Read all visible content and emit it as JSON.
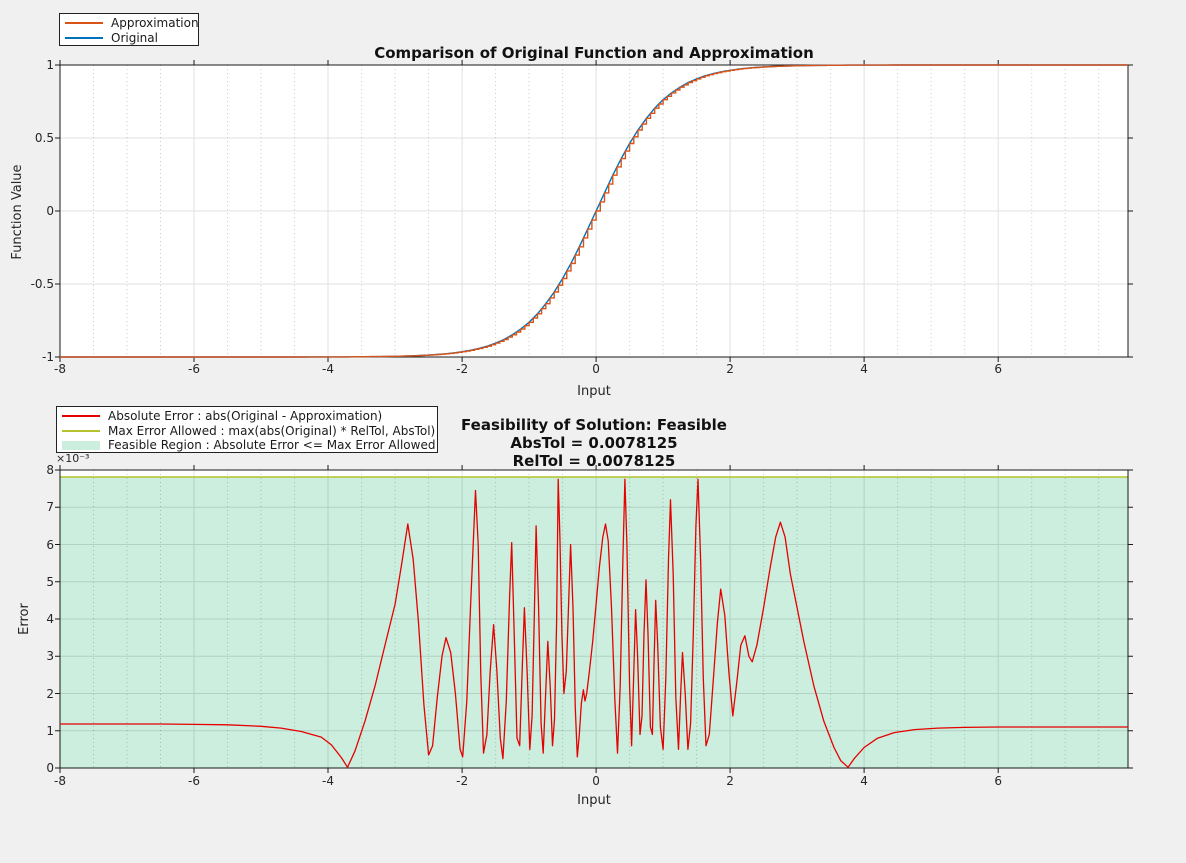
{
  "figure": {
    "background": "#f0f0f0",
    "axes_background": "#ffffff",
    "frame_color": "#1a1a1a",
    "text_color": "#262626"
  },
  "chart_data": [
    {
      "id": "comparison",
      "type": "line",
      "title": "Comparison of Original Function and Approximation",
      "xlabel": "Input",
      "ylabel": "Function Value",
      "xlim": [
        -8,
        7.9375
      ],
      "ylim": [
        -1,
        1
      ],
      "xticks": [
        -8,
        -6,
        -4,
        -2,
        0,
        2,
        4,
        6
      ],
      "xtick_labels": [
        "-8",
        "-6",
        "-4",
        "-2",
        "0",
        "2",
        "4",
        "6"
      ],
      "yticks": [
        -1,
        -0.5,
        0,
        0.5,
        1
      ],
      "ytick_labels": [
        "-1",
        "-0.5",
        "0",
        "0.5",
        "1"
      ],
      "minor_x_step": 0.5,
      "grid": true,
      "legend": {
        "position": "top-left-outside",
        "entries": [
          {
            "label": "Approximation",
            "color": "#d95319",
            "type": "line"
          },
          {
            "label": "Original",
            "color": "#0072bd",
            "type": "line"
          }
        ]
      },
      "x": [
        -8,
        -7,
        -6,
        -5,
        -4.5,
        -4,
        -3.75,
        -3.5,
        -3.25,
        -3,
        -2.875,
        -2.75,
        -2.625,
        -2.5,
        -2.375,
        -2.25,
        -2.125,
        -2,
        -1.875,
        -1.75,
        -1.625,
        -1.5,
        -1.375,
        -1.25,
        -1.125,
        -1,
        -0.875,
        -0.75,
        -0.625,
        -0.5,
        -0.375,
        -0.25,
        -0.125,
        0,
        0.125,
        0.25,
        0.375,
        0.5,
        0.625,
        0.75,
        0.875,
        1,
        1.125,
        1.25,
        1.375,
        1.5,
        1.625,
        1.75,
        1.875,
        2,
        2.125,
        2.25,
        2.375,
        2.5,
        2.625,
        2.75,
        2.875,
        3,
        3.25,
        3.5,
        3.75,
        4,
        4.5,
        5,
        6,
        7,
        7.9375
      ],
      "series": [
        {
          "name": "Approximation",
          "color": "#d95319",
          "style": "staircase",
          "quantize_x": 0.0625,
          "y": [
            -1,
            -1,
            -1,
            -1,
            -1,
            -0.999,
            -0.999,
            -0.998,
            -0.997,
            -0.995,
            -0.994,
            -0.992,
            -0.99,
            -0.987,
            -0.983,
            -0.978,
            -0.972,
            -0.964,
            -0.954,
            -0.941,
            -0.926,
            -0.905,
            -0.88,
            -0.848,
            -0.809,
            -0.762,
            -0.704,
            -0.635,
            -0.555,
            -0.462,
            -0.359,
            -0.245,
            -0.124,
            0,
            0.124,
            0.245,
            0.359,
            0.462,
            0.555,
            0.635,
            0.704,
            0.762,
            0.809,
            0.848,
            0.88,
            0.905,
            0.926,
            0.941,
            0.954,
            0.964,
            0.972,
            0.978,
            0.983,
            0.987,
            0.99,
            0.992,
            0.994,
            0.995,
            0.997,
            0.998,
            0.999,
            0.999,
            1,
            1,
            1,
            1,
            1
          ]
        },
        {
          "name": "Original",
          "color": "#0072bd",
          "style": "line",
          "y": [
            -1,
            -1,
            -1,
            -1,
            -1,
            -0.999,
            -0.999,
            -0.998,
            -0.997,
            -0.995,
            -0.994,
            -0.992,
            -0.99,
            -0.987,
            -0.983,
            -0.978,
            -0.972,
            -0.964,
            -0.954,
            -0.941,
            -0.926,
            -0.905,
            -0.88,
            -0.848,
            -0.809,
            -0.762,
            -0.704,
            -0.635,
            -0.555,
            -0.462,
            -0.359,
            -0.245,
            -0.124,
            0,
            0.124,
            0.245,
            0.359,
            0.462,
            0.555,
            0.635,
            0.704,
            0.762,
            0.809,
            0.848,
            0.88,
            0.905,
            0.926,
            0.941,
            0.954,
            0.964,
            0.972,
            0.978,
            0.983,
            0.987,
            0.99,
            0.992,
            0.994,
            0.995,
            0.997,
            0.998,
            0.999,
            0.999,
            1,
            1,
            1,
            1,
            1
          ]
        }
      ]
    },
    {
      "id": "feasibility",
      "type": "line",
      "title_lines": [
        "Feasibility of Solution: Feasible",
        "AbsTol = 0.0078125",
        "RelTol = 0.0078125"
      ],
      "xlabel": "Input",
      "ylabel": "Error",
      "y_multiplier": "×10⁻³",
      "y_scale": 0.001,
      "xlim": [
        -8,
        7.9375
      ],
      "ylim": [
        0,
        8
      ],
      "xticks": [
        -8,
        -6,
        -4,
        -2,
        0,
        2,
        4,
        6
      ],
      "xtick_labels": [
        "-8",
        "-6",
        "-4",
        "-2",
        "0",
        "2",
        "4",
        "6"
      ],
      "yticks": [
        0,
        1,
        2,
        3,
        4,
        5,
        6,
        7,
        8
      ],
      "ytick_labels": [
        "0",
        "1",
        "2",
        "3",
        "4",
        "5",
        "6",
        "7",
        "8"
      ],
      "minor_x_step": 0.5,
      "grid": true,
      "max_error_allowed": 7.8125,
      "max_error_color": "#b5c22b",
      "feasible_region_color": "#cbeede",
      "legend": {
        "position": "top-left-outside",
        "entries": [
          {
            "label": "Absolute Error : abs(Original - Approximation)",
            "color": "#e60000",
            "type": "line"
          },
          {
            "label": "Max Error Allowed : max(abs(Original) * RelTol, AbsTol)",
            "color": "#b5c22b",
            "type": "line"
          },
          {
            "label": "Feasible Region : Absolute Error <= Max Error Allowed",
            "color": "#cbeede",
            "type": "patch"
          }
        ]
      },
      "series": [
        {
          "name": "Absolute Error",
          "color": "#e60000",
          "style": "line",
          "x": [
            -8,
            -7.5,
            -7,
            -6.5,
            -6,
            -5.5,
            -5,
            -4.7,
            -4.4,
            -4.1,
            -3.95,
            -3.8,
            -3.71,
            -3.6,
            -3.45,
            -3.3,
            -3.15,
            -3,
            -2.9,
            -2.81,
            -2.73,
            -2.65,
            -2.57,
            -2.5,
            -2.44,
            -2.37,
            -2.3,
            -2.24,
            -2.17,
            -2.1,
            -2.03,
            -1.99,
            -1.93,
            -1.87,
            -1.8,
            -1.76,
            -1.72,
            -1.68,
            -1.63,
            -1.58,
            -1.53,
            -1.48,
            -1.43,
            -1.39,
            -1.34,
            -1.29,
            -1.26,
            -1.22,
            -1.18,
            -1.14,
            -1.1,
            -1.07,
            -1.03,
            -0.99,
            -0.955,
            -0.92,
            -0.895,
            -0.86,
            -0.82,
            -0.79,
            -0.755,
            -0.72,
            -0.685,
            -0.65,
            -0.62,
            -0.59,
            -0.565,
            -0.54,
            -0.51,
            -0.48,
            -0.445,
            -0.41,
            -0.38,
            -0.345,
            -0.31,
            -0.28,
            -0.25,
            -0.22,
            -0.19,
            -0.165,
            -0.14,
            -0.1,
            -0.05,
            0,
            0.05,
            0.1,
            0.14,
            0.18,
            0.23,
            0.28,
            0.32,
            0.36,
            0.4,
            0.43,
            0.46,
            0.5,
            0.53,
            0.56,
            0.59,
            0.62,
            0.655,
            0.685,
            0.715,
            0.745,
            0.775,
            0.81,
            0.84,
            0.865,
            0.89,
            0.92,
            0.96,
            1,
            1.04,
            1.08,
            1.11,
            1.15,
            1.19,
            1.23,
            1.26,
            1.29,
            1.33,
            1.37,
            1.41,
            1.45,
            1.49,
            1.52,
            1.56,
            1.6,
            1.64,
            1.69,
            1.75,
            1.81,
            1.86,
            1.92,
            1.98,
            2.04,
            2.1,
            2.16,
            2.22,
            2.28,
            2.33,
            2.4,
            2.5,
            2.6,
            2.68,
            2.75,
            2.82,
            2.9,
            3,
            3.1,
            3.25,
            3.4,
            3.55,
            3.65,
            3.76,
            3.85,
            4,
            4.2,
            4.45,
            4.75,
            5.1,
            5.5,
            6,
            6.5,
            7,
            7.5,
            7.94
          ],
          "y": [
            1.18,
            1.18,
            1.18,
            1.18,
            1.17,
            1.16,
            1.12,
            1.07,
            0.98,
            0.83,
            0.62,
            0.28,
            0.02,
            0.45,
            1.25,
            2.2,
            3.3,
            4.4,
            5.5,
            6.55,
            5.6,
            3.9,
            1.7,
            0.35,
            0.6,
            1.9,
            3,
            3.5,
            3.1,
            2,
            0.5,
            0.3,
            1.8,
            4.5,
            7.45,
            6,
            2.5,
            0.4,
            0.9,
            2.6,
            3.85,
            2.6,
            0.8,
            0.25,
            1.8,
            4.6,
            6.05,
            3.5,
            0.8,
            0.6,
            2.8,
            4.3,
            2.6,
            0.5,
            1.4,
            4.2,
            6.5,
            4.4,
            1.2,
            0.4,
            1.9,
            3.4,
            2.2,
            0.6,
            1.3,
            3.9,
            7.75,
            6.2,
            3.6,
            2,
            2.6,
            4.4,
            6,
            4.3,
            1.6,
            0.3,
            0.9,
            1.75,
            2.1,
            1.8,
            2,
            2.6,
            3.4,
            4.4,
            5.4,
            6.2,
            6.55,
            6.1,
            4.3,
            1.8,
            0.4,
            2.2,
            5.6,
            7.75,
            6,
            2.2,
            0.6,
            2.4,
            4.25,
            3,
            0.9,
            1.4,
            3.6,
            5.05,
            3.6,
            1.1,
            0.9,
            2.9,
            4.5,
            3.3,
            1.1,
            0.5,
            2.4,
            5.6,
            7.2,
            5.2,
            1.9,
            0.5,
            1.9,
            3.1,
            2,
            0.5,
            1.2,
            3.6,
            6.5,
            7.75,
            5.6,
            2.4,
            0.6,
            0.9,
            2.4,
            3.9,
            4.8,
            4.1,
            2.6,
            1.4,
            2.3,
            3.3,
            3.55,
            3,
            2.85,
            3.3,
            4.3,
            5.4,
            6.2,
            6.6,
            6.2,
            5.2,
            4.3,
            3.4,
            2.2,
            1.25,
            0.55,
            0.2,
            0.02,
            0.25,
            0.55,
            0.8,
            0.95,
            1.03,
            1.07,
            1.09,
            1.1,
            1.1,
            1.1,
            1.1,
            1.1
          ]
        }
      ]
    }
  ]
}
